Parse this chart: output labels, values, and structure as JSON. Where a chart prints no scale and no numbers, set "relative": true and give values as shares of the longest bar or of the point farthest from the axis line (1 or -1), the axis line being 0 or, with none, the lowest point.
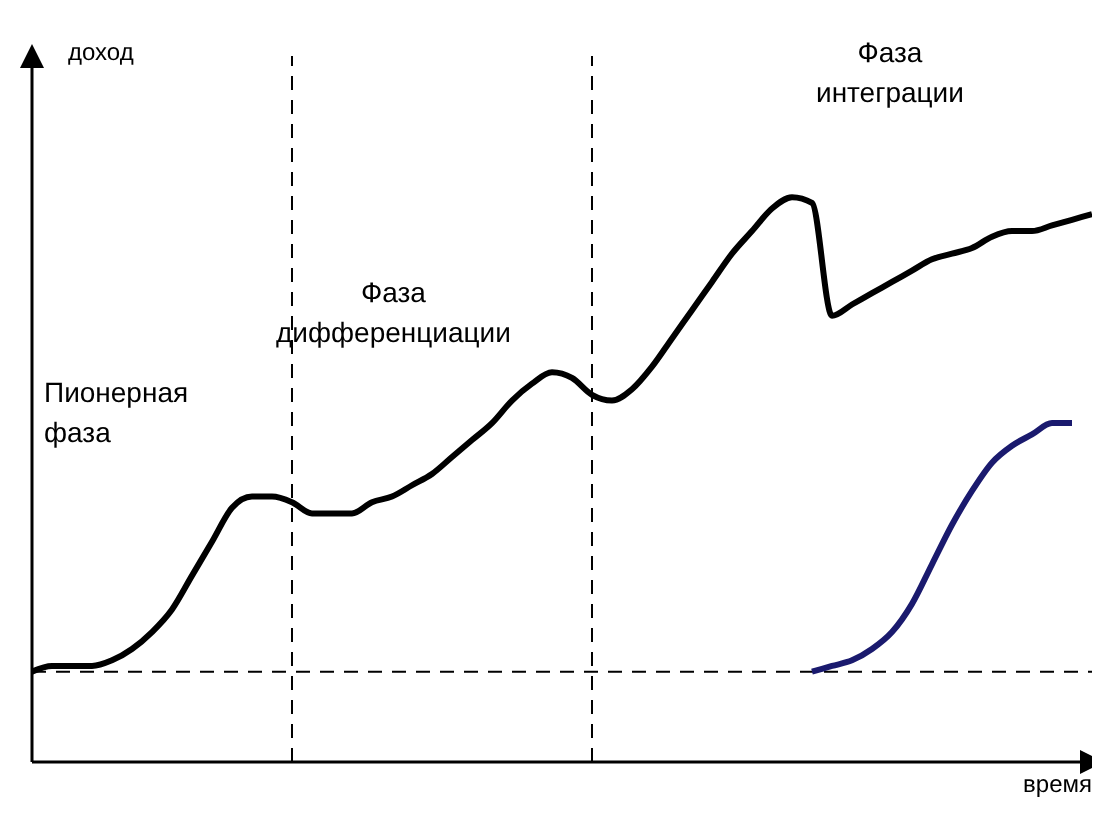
{
  "chart_data": {
    "type": "line",
    "relative": true,
    "xlabel": "время",
    "categories": [
      null,
      null,
      null,
      null,
      null,
      null,
      null,
      null,
      null,
      null,
      null,
      null,
      null,
      null,
      null,
      null,
      null,
      null,
      null,
      null,
      null,
      null,
      null,
      null,
      null,
      null,
      null,
      null,
      null,
      null,
      null,
      null,
      null,
      null,
      null,
      null,
      null,
      null,
      null,
      null,
      null,
      null,
      null,
      null,
      null,
      null,
      null,
      null,
      null,
      null,
      null,
      null,
      null,
      null
    ],
    "series": [
      {
        "color": "#000000",
        "values": [
          0.16,
          0.17,
          0.17,
          0.17,
          0.18,
          0.2,
          0.23,
          0.27,
          0.33,
          0.39,
          0.45,
          0.47,
          0.47,
          0.46,
          0.44,
          0.44,
          0.44,
          0.46,
          0.47,
          0.49,
          0.51,
          0.54,
          0.57,
          0.6,
          0.64,
          0.67,
          0.69,
          0.68,
          0.65,
          0.64,
          0.66,
          0.7,
          0.75,
          0.8,
          0.85,
          0.9,
          0.94,
          0.98,
          1,
          0.99,
          0.79,
          0.81,
          0.83,
          0.85,
          0.87,
          0.89,
          0.9,
          0.91,
          0.93,
          0.94,
          0.94,
          0.95,
          0.96,
          0.97
        ]
      },
      {
        "color": "#1a1a6e",
        "values": [
          null,
          null,
          null,
          null,
          null,
          null,
          null,
          null,
          null,
          null,
          null,
          null,
          null,
          null,
          null,
          null,
          null,
          null,
          null,
          null,
          null,
          null,
          null,
          null,
          null,
          null,
          null,
          null,
          null,
          null,
          null,
          null,
          null,
          null,
          null,
          null,
          null,
          null,
          null,
          0.16,
          0.17,
          0.18,
          0.2,
          0.23,
          0.28,
          0.35,
          0.42,
          0.48,
          0.53,
          0.56,
          0.58,
          0.6,
          0.6,
          null
        ]
      }
    ],
    "ref_lines": [
      {
        "axis": "y",
        "value": 0.16,
        "line_style": "dashed",
        "color": "#000000"
      }
    ],
    "annotations": [
      "Пионерная\nфаза",
      "Фаза\nдифференциации",
      "Фаза\nинтеграции",
      "доход"
    ],
    "marker": "none",
    "line_style": "solid"
  }
}
